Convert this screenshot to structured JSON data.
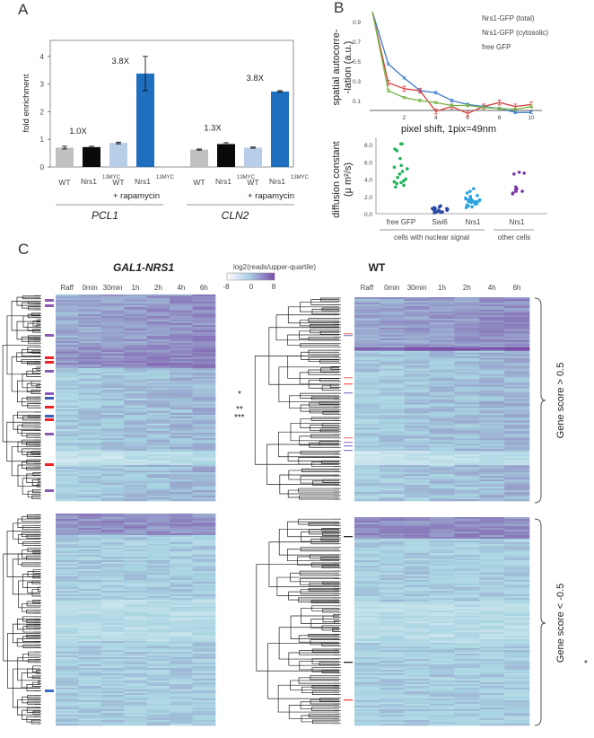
{
  "panels": {
    "a": "A",
    "b": "B",
    "c": "C"
  },
  "chart_data": [
    {
      "type": "bar",
      "panel": "A",
      "ylabel": "fold enrichment",
      "ylim": [
        0,
        4.5
      ],
      "yticks": [
        "0",
        "1",
        "2",
        "3",
        "4"
      ],
      "groups": [
        "PCL1",
        "CLN2"
      ],
      "treatment_label": "+ rapamycin",
      "categories": [
        {
          "name": "WT",
          "sup": ""
        },
        {
          "name": "Nrs1",
          "sup": "13MYC"
        },
        {
          "name": "WT",
          "sup": ""
        },
        {
          "name": "Nrs1",
          "sup": "13MYC"
        }
      ],
      "colors": [
        "#c0c0c0",
        "#0a0a0a",
        "#b8cde8",
        "#1f6fc0"
      ],
      "values": {
        "PCL1": [
          0.7,
          0.72,
          0.87,
          3.38
        ],
        "CLN2": [
          0.63,
          0.83,
          0.7,
          2.73
        ]
      },
      "errors": {
        "PCL1": [
          0.05,
          0.03,
          0.03,
          0.62
        ],
        "CLN2": [
          0.02,
          0.05,
          0.02,
          0.03
        ]
      },
      "annotations": {
        "PCL1": [
          "1.0X",
          "3.8X"
        ],
        "CLN2": [
          "1.3X",
          "3.8X"
        ]
      }
    },
    {
      "type": "line",
      "panel": "B-top",
      "ylabel": "spatial autocorre-\n-lation (a.u.)",
      "ylabel_lines": [
        "spatial autocorre-",
        "-lation (a.u.)"
      ],
      "xlabel": "pixel shift, 1pix=49nm",
      "xticks": [
        "2",
        "4",
        "6",
        "8",
        "10"
      ],
      "yticks": [
        "0.1",
        "0.3",
        "0.5",
        "0.7",
        "0.9"
      ],
      "x": [
        0,
        1,
        2,
        3,
        4,
        5,
        6,
        7,
        8,
        9,
        10
      ],
      "series": [
        {
          "name": "Nrs1-GFP (total)",
          "color": "#3b78c8",
          "values": [
            1.0,
            0.47,
            0.33,
            0.2,
            0.18,
            0.1,
            0.06,
            0.04,
            0.02,
            -0.02,
            -0.02
          ]
        },
        {
          "name": "Nrs1-GFP (cytosolic)",
          "color": "#d23c3c",
          "values": [
            1.0,
            0.28,
            0.22,
            0.2,
            -0.01,
            0.04,
            -0.03,
            0.04,
            0.08,
            0.04,
            0.06
          ]
        },
        {
          "name": "free GFP",
          "color": "#7ab648",
          "values": [
            1.0,
            0.2,
            0.13,
            0.1,
            0.08,
            0.05,
            0.05,
            0.03,
            0.02,
            0.01,
            0.04
          ]
        }
      ]
    },
    {
      "type": "scatter",
      "panel": "B-bottom",
      "ylabel_lines": [
        "diffusion constant",
        "(μ m²/s)"
      ],
      "yticks": [
        "0.0",
        "2.0",
        "4.0",
        "6.0",
        "8.0"
      ],
      "ylim": [
        0,
        8.5
      ],
      "group_labels": [
        "cells with nuclear signal",
        "other cells"
      ],
      "categories": [
        {
          "name": "free GFP",
          "color": "#1fb35a",
          "values": [
            8.1,
            8.1,
            7.5,
            7.3,
            6.4,
            5.6,
            5.4,
            5.2,
            4.9,
            4.6,
            4.2,
            4.0,
            3.8,
            3.7,
            3.6,
            3.5,
            3.3,
            3.1
          ]
        },
        {
          "name": "Swi6",
          "color": "#2b4aa8",
          "values": [
            0.9,
            0.8,
            0.7,
            0.6,
            0.6,
            0.5,
            0.5,
            0.4,
            0.4,
            0.3,
            0.3,
            0.2,
            0.2,
            0.2,
            0.1,
            0.5,
            0.4,
            0.6
          ]
        },
        {
          "name": "Nrs1",
          "color": "#2aa4e0",
          "values": [
            2.9,
            2.6,
            2.4,
            2.1,
            2.0,
            1.8,
            1.7,
            1.6,
            1.6,
            1.5,
            1.5,
            1.4,
            1.3,
            1.3,
            1.2,
            1.1,
            1.0,
            0.9,
            0.8,
            0.7,
            1.8,
            1.6,
            1.4
          ]
        },
        {
          "name": "Nrs1",
          "color": "#7a35a8",
          "values": [
            4.8,
            4.7,
            4.6,
            3.1,
            2.9,
            2.7,
            2.6,
            2.6,
            2.8,
            2.4,
            2.3
          ]
        }
      ]
    },
    {
      "type": "heatmap",
      "panel": "C",
      "titles": [
        "GAL1-NRS1",
        "WT"
      ],
      "columns": [
        "Raff",
        "0min",
        "30min",
        "1h",
        "2h",
        "4h",
        "6h"
      ],
      "colorbar": {
        "label": "log2(reads/upper-quartile)",
        "ticks": [
          "-8",
          "0",
          "8"
        ],
        "range": [
          -8,
          8
        ],
        "colors": [
          "#ffffff",
          "#a8d4e2",
          "#7a4aa6"
        ]
      },
      "row_groups": [
        "Gene score > 0.5",
        "Gene score < -0.5"
      ],
      "markers": {
        "left": [
          "*",
          "**",
          "***"
        ],
        "right": [
          "*"
        ]
      }
    }
  ]
}
